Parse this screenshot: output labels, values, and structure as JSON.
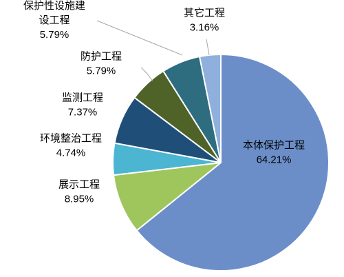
{
  "chart_data": {
    "type": "pie",
    "title": "",
    "slices": [
      {
        "label": "本体保护工程",
        "value": 64.21,
        "value_label": "64.21%",
        "color": "#6b8ec9"
      },
      {
        "label": "展示工程",
        "value": 8.95,
        "value_label": "8.95%",
        "color": "#9fc65c"
      },
      {
        "label": "环境整治工程",
        "value": 4.74,
        "value_label": "4.74%",
        "color": "#4bb5d2"
      },
      {
        "label": "监测工程",
        "value": 7.37,
        "value_label": "7.37%",
        "color": "#1f4e79"
      },
      {
        "label": "防护工程",
        "value": 5.79,
        "value_label": "5.79%",
        "color": "#4f6228"
      },
      {
        "label": "保护性设施建设工程",
        "value": 5.79,
        "value_label": "5.79%",
        "color": "#2e6d7f",
        "label_lines": [
          "保护性设施建",
          "设工程"
        ]
      },
      {
        "label": "其它工程",
        "value": 3.16,
        "value_label": "3.16%",
        "color": "#8fb0dc"
      }
    ],
    "start_angle_deg": 0,
    "direction": "clockwise"
  }
}
